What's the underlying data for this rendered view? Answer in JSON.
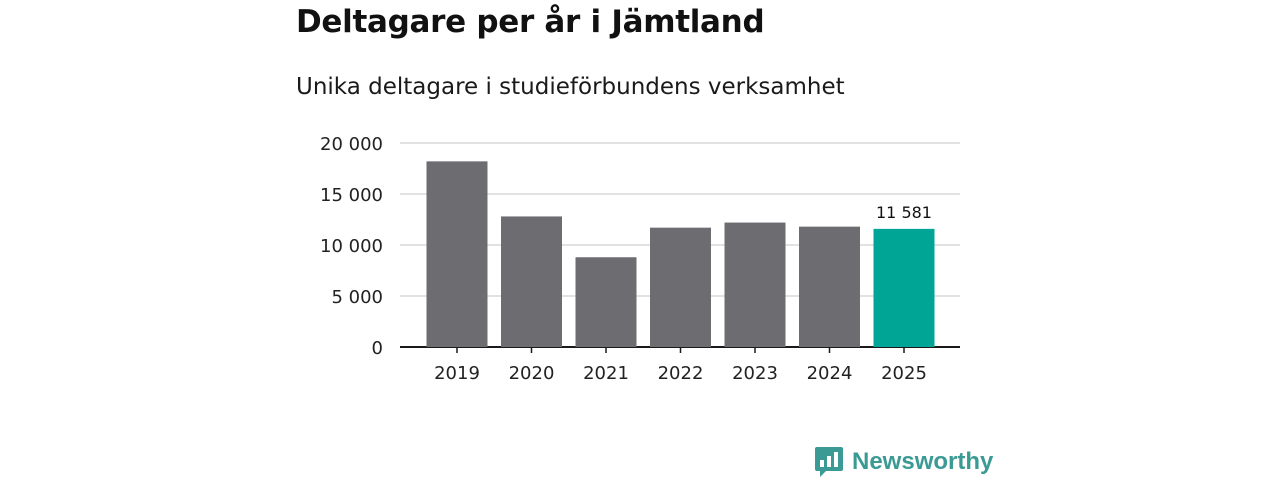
{
  "title": "Deltagare per år i Jämtland",
  "subtitle": "Unika deltagare i studieförbundens verksamhet",
  "brand": "Newsworthy",
  "colors": {
    "bar": "#6d6c71",
    "highlight": "#00a596",
    "grid": "#d9d9d9",
    "axis": "#1a1a1a",
    "brand": "#3b9b94"
  },
  "chart_data": {
    "type": "bar",
    "title": "Deltagare per år i Jämtland",
    "subtitle": "Unika deltagare i studieförbundens verksamhet",
    "categories": [
      "2019",
      "2020",
      "2021",
      "2022",
      "2023",
      "2024",
      "2025"
    ],
    "values": [
      18200,
      12800,
      8800,
      11700,
      12200,
      11800,
      11581
    ],
    "highlight_index": 6,
    "data_labels": [
      {
        "index": 6,
        "text": "11 581"
      }
    ],
    "y_ticks": [
      0,
      5000,
      10000,
      15000,
      20000
    ],
    "y_tick_labels": [
      "0",
      "5 000",
      "10 000",
      "15 000",
      "20 000"
    ],
    "ylim": [
      0,
      20000
    ],
    "xlabel": "",
    "ylabel": "",
    "grid": true
  }
}
